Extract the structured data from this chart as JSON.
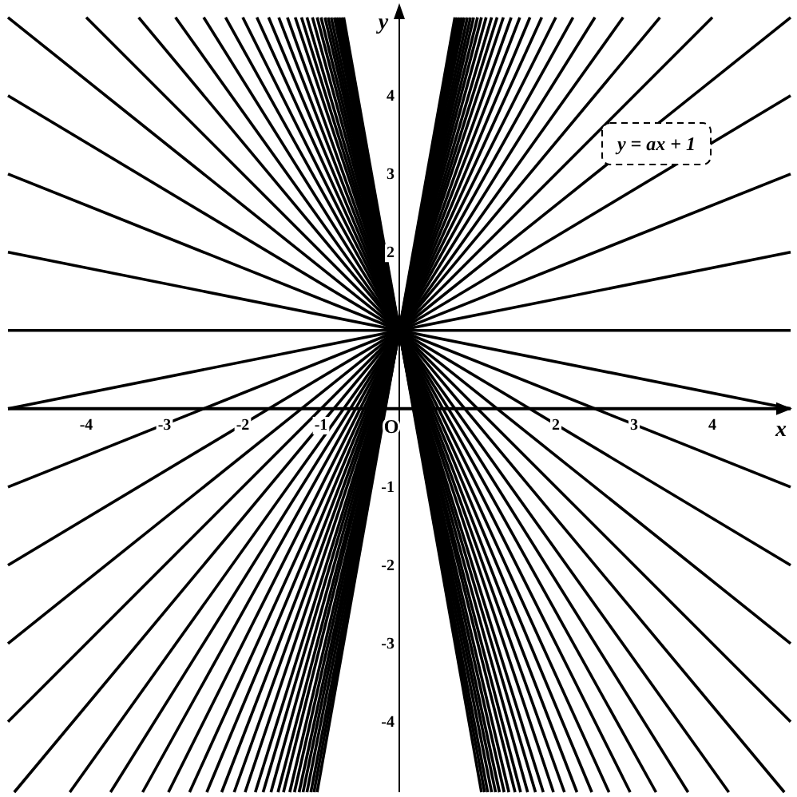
{
  "chart_data": {
    "type": "line",
    "xlabel": "x",
    "ylabel": "y",
    "xlim": [
      -5,
      5
    ],
    "ylim": [
      -4.9,
      5.1
    ],
    "xticks": [
      -4,
      -3,
      -2,
      -1,
      2,
      3,
      4
    ],
    "yticks": [
      -4,
      -3,
      -2,
      -1,
      2,
      3,
      4
    ],
    "annotations": [
      "y = ax + 1",
      "O"
    ],
    "series": [
      {
        "color": "#000000",
        "x": [
          -0.71,
          1.05
        ],
        "values": [
          5,
          -4.9
        ]
      },
      {
        "color": "#000000",
        "x": [
          -0.74,
          1.09
        ],
        "values": [
          5,
          -4.9
        ]
      },
      {
        "color": "#000000",
        "x": [
          -0.77,
          1.13
        ],
        "values": [
          5,
          -4.9
        ]
      },
      {
        "color": "#000000",
        "x": [
          -0.8,
          1.18
        ],
        "values": [
          5,
          -4.9
        ]
      },
      {
        "color": "#000000",
        "x": [
          -0.83,
          1.23
        ],
        "values": [
          5,
          -4.9
        ]
      },
      {
        "color": "#000000",
        "x": [
          -0.87,
          1.28
        ],
        "values": [
          5,
          -4.9
        ]
      },
      {
        "color": "#000000",
        "x": [
          -0.91,
          1.34
        ],
        "values": [
          5,
          -4.9
        ]
      },
      {
        "color": "#000000",
        "x": [
          -0.95,
          1.4
        ],
        "values": [
          5,
          -4.9
        ]
      },
      {
        "color": "#000000",
        "x": [
          -1,
          1.48
        ],
        "values": [
          5,
          -4.9
        ]
      },
      {
        "color": "#000000",
        "x": [
          -1.05,
          1.55
        ],
        "values": [
          5,
          -4.9
        ]
      },
      {
        "color": "#000000",
        "x": [
          -1.11,
          1.64
        ],
        "values": [
          5,
          -4.9
        ]
      },
      {
        "color": "#000000",
        "x": [
          -1.18,
          1.74
        ],
        "values": [
          5,
          -4.9
        ]
      },
      {
        "color": "#000000",
        "x": [
          -1.25,
          1.84
        ],
        "values": [
          5,
          -4.9
        ]
      },
      {
        "color": "#000000",
        "x": [
          -1.33,
          1.97
        ],
        "values": [
          5,
          -4.9
        ]
      },
      {
        "color": "#000000",
        "x": [
          -1.43,
          2.11
        ],
        "values": [
          5,
          -4.9
        ]
      },
      {
        "color": "#000000",
        "x": [
          -1.54,
          2.27
        ],
        "values": [
          5,
          -4.9
        ]
      },
      {
        "color": "#000000",
        "x": [
          -1.67,
          2.46
        ],
        "values": [
          5,
          -4.9
        ]
      },
      {
        "color": "#000000",
        "x": [
          -1.82,
          2.68
        ],
        "values": [
          5,
          -4.9
        ]
      },
      {
        "color": "#000000",
        "x": [
          -2,
          2.95
        ],
        "values": [
          5,
          -4.9
        ]
      },
      {
        "color": "#000000",
        "x": [
          -2.22,
          3.28
        ],
        "values": [
          5,
          -4.9
        ]
      },
      {
        "color": "#000000",
        "x": [
          -2.5,
          3.69
        ],
        "values": [
          5,
          -4.9
        ]
      },
      {
        "color": "#000000",
        "x": [
          -2.86,
          4.21
        ],
        "values": [
          5,
          -4.9
        ]
      },
      {
        "color": "#000000",
        "x": [
          -3.33,
          4.92
        ],
        "values": [
          5,
          -4.9
        ]
      },
      {
        "color": "#000000",
        "x": [
          -4,
          5
        ],
        "values": [
          5,
          -4
        ]
      },
      {
        "color": "#000000",
        "x": [
          -5,
          5
        ],
        "values": [
          5,
          -3
        ]
      },
      {
        "color": "#000000",
        "x": [
          -5,
          5
        ],
        "values": [
          4,
          -2
        ]
      },
      {
        "color": "#000000",
        "x": [
          -5,
          5
        ],
        "values": [
          3,
          -1
        ]
      },
      {
        "color": "#000000",
        "x": [
          -5,
          5
        ],
        "values": [
          2,
          0
        ]
      },
      {
        "color": "#000000",
        "x": [
          -5,
          5
        ],
        "values": [
          1,
          1
        ]
      },
      {
        "color": "#000000",
        "x": [
          -5,
          5
        ],
        "values": [
          0,
          2
        ]
      },
      {
        "color": "#000000",
        "x": [
          -5,
          5
        ],
        "values": [
          -1,
          3
        ]
      },
      {
        "color": "#000000",
        "x": [
          -5,
          5
        ],
        "values": [
          -2,
          4
        ]
      },
      {
        "color": "#000000",
        "x": [
          -5,
          5
        ],
        "values": [
          -3,
          5
        ]
      },
      {
        "color": "#000000",
        "x": [
          -5,
          4
        ],
        "values": [
          -4,
          5
        ]
      },
      {
        "color": "#000000",
        "x": [
          -4.92,
          3.33
        ],
        "values": [
          -4.9,
          5
        ]
      },
      {
        "color": "#000000",
        "x": [
          -4.21,
          2.86
        ],
        "values": [
          -4.9,
          5
        ]
      },
      {
        "color": "#000000",
        "x": [
          -3.69,
          2.5
        ],
        "values": [
          -4.9,
          5
        ]
      },
      {
        "color": "#000000",
        "x": [
          -3.28,
          2.22
        ],
        "values": [
          -4.9,
          5
        ]
      },
      {
        "color": "#000000",
        "x": [
          -2.95,
          2
        ],
        "values": [
          -4.9,
          5
        ]
      },
      {
        "color": "#000000",
        "x": [
          -2.68,
          1.82
        ],
        "values": [
          -4.9,
          5
        ]
      },
      {
        "color": "#000000",
        "x": [
          -2.46,
          1.67
        ],
        "values": [
          -4.9,
          5
        ]
      },
      {
        "color": "#000000",
        "x": [
          -2.27,
          1.54
        ],
        "values": [
          -4.9,
          5
        ]
      },
      {
        "color": "#000000",
        "x": [
          -2.11,
          1.43
        ],
        "values": [
          -4.9,
          5
        ]
      },
      {
        "color": "#000000",
        "x": [
          -1.97,
          1.33
        ],
        "values": [
          -4.9,
          5
        ]
      },
      {
        "color": "#000000",
        "x": [
          -1.84,
          1.25
        ],
        "values": [
          -4.9,
          5
        ]
      },
      {
        "color": "#000000",
        "x": [
          -1.74,
          1.18
        ],
        "values": [
          -4.9,
          5
        ]
      },
      {
        "color": "#000000",
        "x": [
          -1.64,
          1.11
        ],
        "values": [
          -4.9,
          5
        ]
      },
      {
        "color": "#000000",
        "x": [
          -1.55,
          1.05
        ],
        "values": [
          -4.9,
          5
        ]
      },
      {
        "color": "#000000",
        "x": [
          -1.48,
          1
        ],
        "values": [
          -4.9,
          5
        ]
      },
      {
        "color": "#000000",
        "x": [
          -1.4,
          0.95
        ],
        "values": [
          -4.9,
          5
        ]
      },
      {
        "color": "#000000",
        "x": [
          -1.34,
          0.91
        ],
        "values": [
          -4.9,
          5
        ]
      },
      {
        "color": "#000000",
        "x": [
          -1.28,
          0.87
        ],
        "values": [
          -4.9,
          5
        ]
      },
      {
        "color": "#000000",
        "x": [
          -1.23,
          0.83
        ],
        "values": [
          -4.9,
          5
        ]
      },
      {
        "color": "#000000",
        "x": [
          -1.18,
          0.8
        ],
        "values": [
          -4.9,
          5
        ]
      },
      {
        "color": "#000000",
        "x": [
          -1.13,
          0.77
        ],
        "values": [
          -4.9,
          5
        ]
      },
      {
        "color": "#000000",
        "x": [
          -1.09,
          0.74
        ],
        "values": [
          -4.9,
          5
        ]
      },
      {
        "color": "#000000",
        "x": [
          -1.05,
          0.71
        ],
        "values": [
          -4.9,
          5
        ]
      }
    ]
  }
}
